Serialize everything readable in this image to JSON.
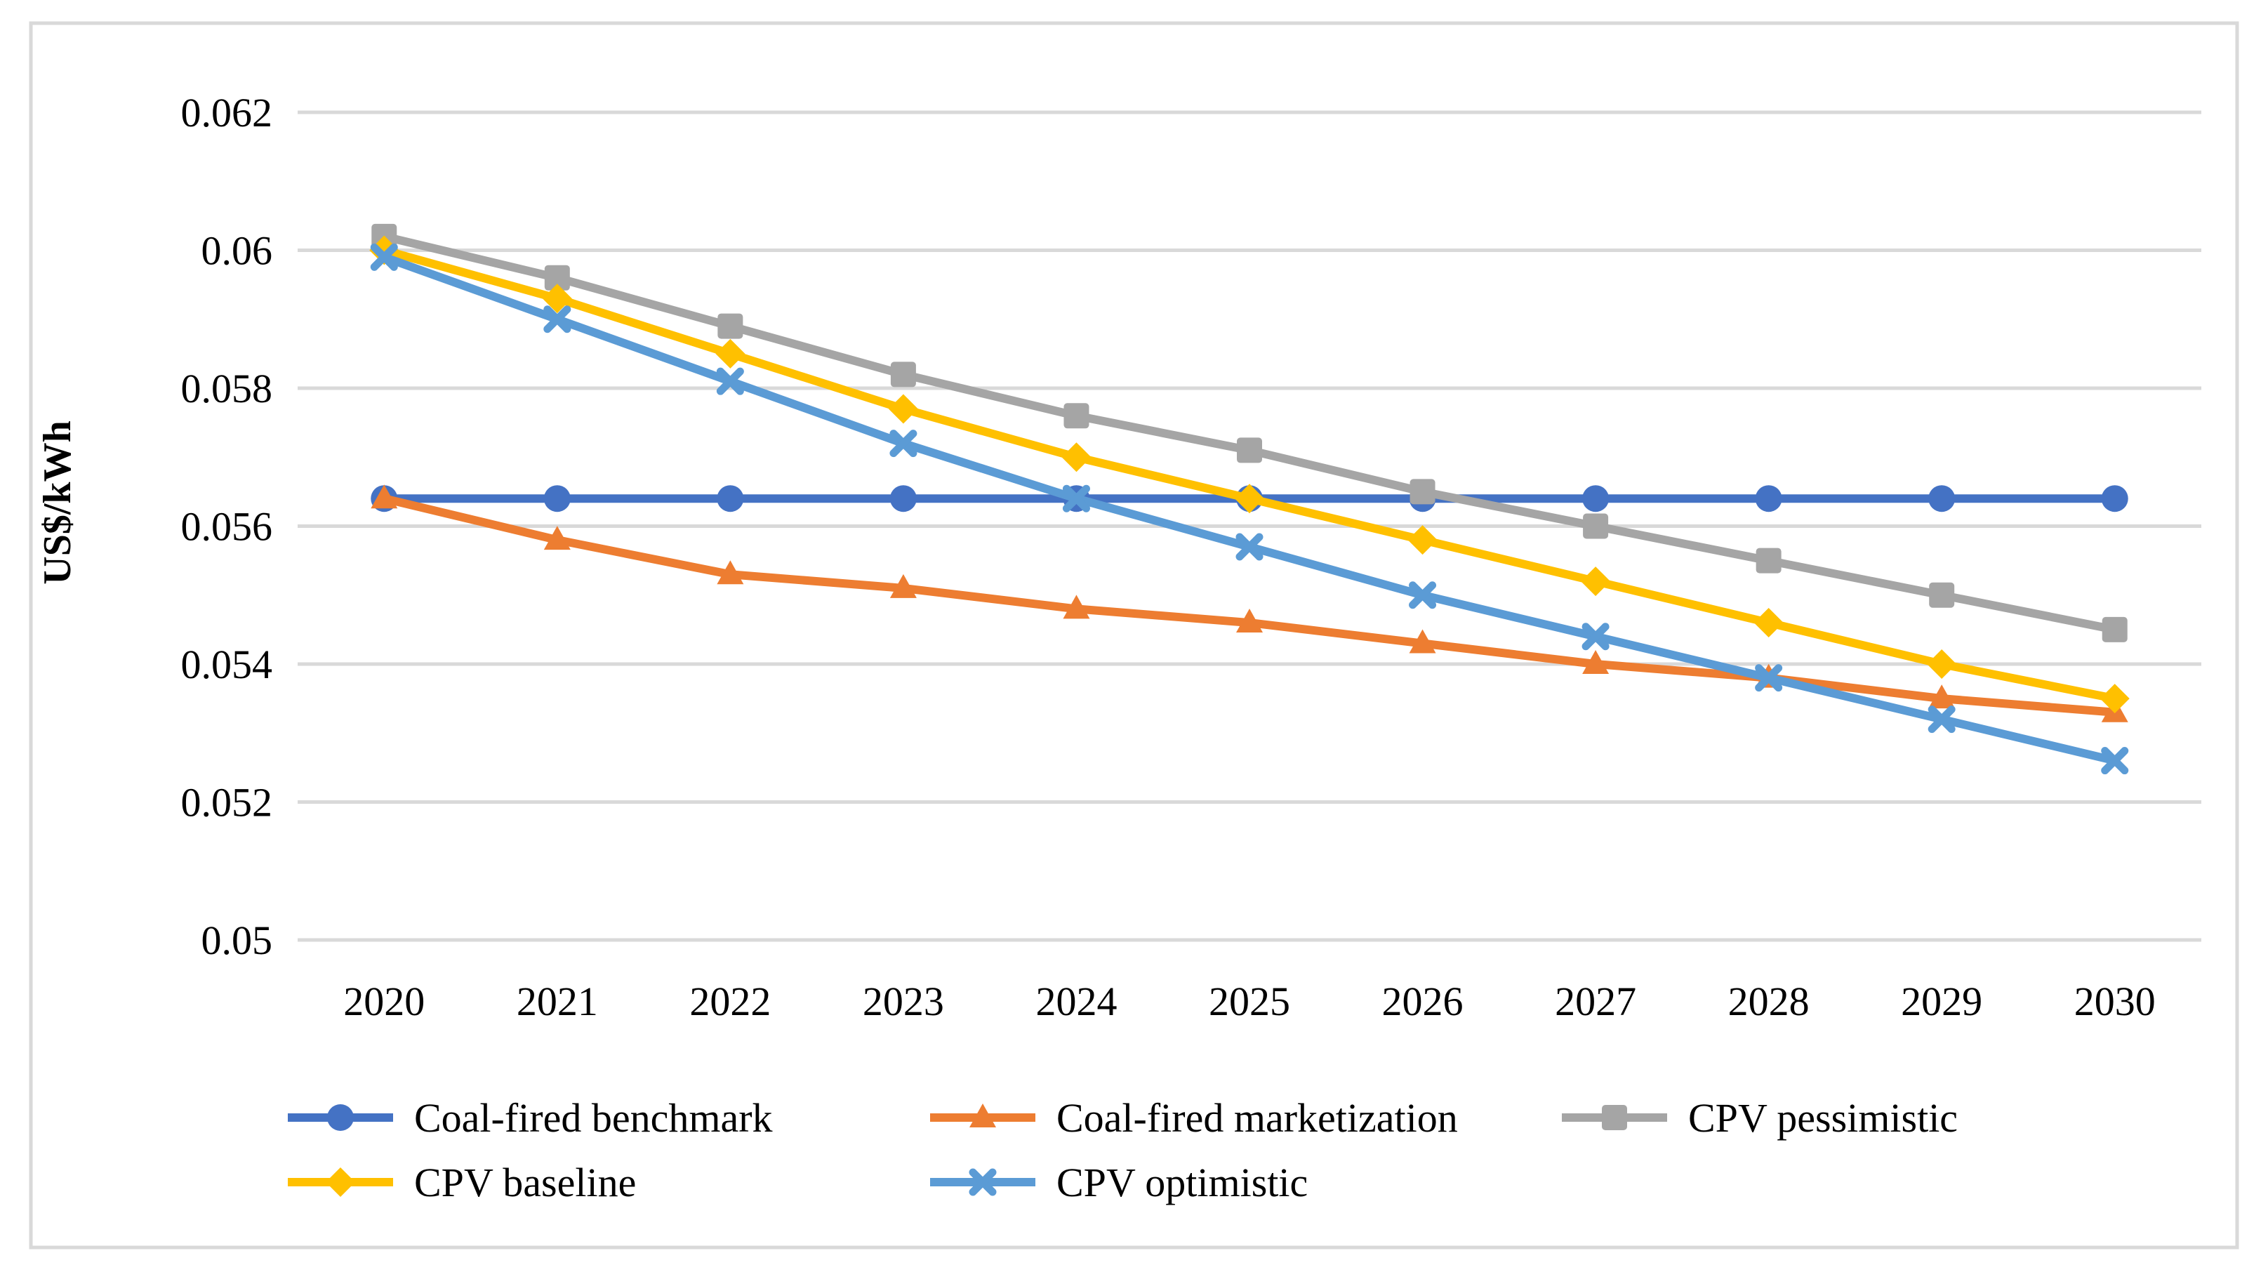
{
  "figure": {
    "background": "#ffffff",
    "border_color": "#d9d9d9",
    "grid_color": "#d9d9d9",
    "text_color": "#000000"
  },
  "chart_data": {
    "type": "line",
    "title": "",
    "xlabel": "",
    "ylabel": "US$/kWh",
    "x": [
      2020,
      2021,
      2022,
      2023,
      2024,
      2025,
      2026,
      2027,
      2028,
      2029,
      2030
    ],
    "ylim": [
      0.05,
      0.062
    ],
    "yticks": [
      0.062,
      0.06,
      0.058,
      0.056,
      0.054,
      0.052,
      0.05
    ],
    "ytick_labels": [
      "0.062",
      "0.06",
      "0.058",
      "0.056",
      "0.054",
      "0.052",
      "0.05"
    ],
    "grid": true,
    "legend_position": "bottom",
    "series": [
      {
        "name": "Coal-fired benchmark",
        "color": "#4472C4",
        "marker": "circle",
        "values": [
          0.0564,
          0.0564,
          0.0564,
          0.0564,
          0.0564,
          0.0564,
          0.0564,
          0.0564,
          0.0564,
          0.0564,
          0.0564
        ]
      },
      {
        "name": "Coal-fired marketization",
        "color": "#ED7D31",
        "marker": "triangle-up",
        "values": [
          0.0564,
          0.0558,
          0.0553,
          0.0551,
          0.0548,
          0.0546,
          0.0543,
          0.054,
          0.0538,
          0.0535,
          0.0533
        ]
      },
      {
        "name": "CPV pessimistic",
        "color": "#A5A5A5",
        "marker": "square",
        "values": [
          0.0602,
          0.0596,
          0.0589,
          0.0582,
          0.0576,
          0.0571,
          0.0565,
          0.056,
          0.0555,
          0.055,
          0.0545
        ]
      },
      {
        "name": "CPV baseline",
        "color": "#FFC000",
        "marker": "diamond",
        "values": [
          0.06,
          0.0593,
          0.0585,
          0.0577,
          0.057,
          0.0564,
          0.0558,
          0.0552,
          0.0546,
          0.054,
          0.0535
        ]
      },
      {
        "name": "CPV optimistic",
        "color": "#5B9BD5",
        "marker": "x",
        "values": [
          0.0599,
          0.059,
          0.0581,
          0.0572,
          0.0564,
          0.0557,
          0.055,
          0.0544,
          0.0538,
          0.0532,
          0.0526
        ]
      }
    ]
  }
}
